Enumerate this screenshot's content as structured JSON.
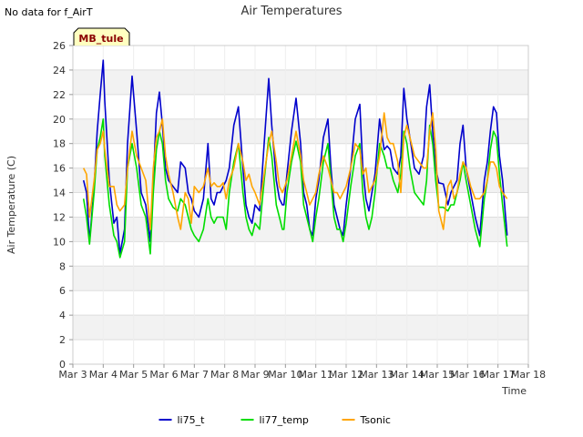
{
  "note": "No data for f_AirT",
  "station_tag": "MB_tule",
  "chart_data": {
    "type": "line",
    "title": "Air Temperatures",
    "xlabel": "Time",
    "ylabel": "Air Temperature (C)",
    "xlim": [
      0,
      15
    ],
    "ylim": [
      0,
      26
    ],
    "x_ticks": [
      0,
      1,
      2,
      3,
      4,
      5,
      6,
      7,
      8,
      9,
      10,
      11,
      12,
      13,
      14,
      15
    ],
    "x_tick_labels": [
      "Mar 3",
      "Mar 4",
      "Mar 5",
      "Mar 6",
      "Mar 7",
      "Mar 8",
      "Mar 9",
      "Mar 10",
      "Mar 11",
      "Mar 12",
      "Mar 13",
      "Mar 14",
      "Mar 15",
      "Mar 16",
      "Mar 17",
      "Mar 18"
    ],
    "y_ticks": [
      0,
      2,
      4,
      6,
      8,
      10,
      12,
      14,
      16,
      18,
      20,
      22,
      24,
      26
    ],
    "grid": true,
    "legend_position": "bottom-center",
    "series": [
      {
        "name": "li75_t",
        "color": "#0000cc",
        "x": [
          0.35,
          0.45,
          0.55,
          0.7,
          0.8,
          0.9,
          1.0,
          1.05,
          1.2,
          1.35,
          1.45,
          1.55,
          1.7,
          1.8,
          1.95,
          2.1,
          2.25,
          2.4,
          2.55,
          2.65,
          2.75,
          2.85,
          2.95,
          3.05,
          3.15,
          3.3,
          3.45,
          3.55,
          3.7,
          3.8,
          3.9,
          4.0,
          4.15,
          4.3,
          4.45,
          4.55,
          4.65,
          4.75,
          4.85,
          4.95,
          5.05,
          5.15,
          5.3,
          5.45,
          5.6,
          5.7,
          5.8,
          5.9,
          6.0,
          6.15,
          6.3,
          6.45,
          6.55,
          6.7,
          6.8,
          6.9,
          6.95,
          7.05,
          7.2,
          7.35,
          7.5,
          7.6,
          7.7,
          7.8,
          7.9,
          8.0,
          8.1,
          8.25,
          8.4,
          8.5,
          8.6,
          8.7,
          8.8,
          8.9,
          9.0,
          9.15,
          9.3,
          9.45,
          9.55,
          9.65,
          9.75,
          9.85,
          9.95,
          10.1,
          10.25,
          10.35,
          10.45,
          10.55,
          10.7,
          10.8,
          10.9,
          11.0,
          11.1,
          11.25,
          11.4,
          11.55,
          11.65,
          11.75,
          11.85,
          11.95,
          12.05,
          12.2,
          12.35,
          12.45,
          12.55,
          12.65,
          12.75,
          12.85,
          12.95,
          13.1,
          13.25,
          13.4,
          13.55,
          13.65,
          13.75,
          13.85,
          13.95,
          14.05,
          14.15,
          14.3
        ],
        "values": [
          15.0,
          14.0,
          10.0,
          14.5,
          19.0,
          22.0,
          24.8,
          21.5,
          15.0,
          11.5,
          12.0,
          9.0,
          11.0,
          18.0,
          23.5,
          19.0,
          14.0,
          13.0,
          10.0,
          15.0,
          20.5,
          22.2,
          19.5,
          16.0,
          15.0,
          14.5,
          14.0,
          16.5,
          16.0,
          14.0,
          13.5,
          12.5,
          12.0,
          13.5,
          18.0,
          13.5,
          13.0,
          14.0,
          14.0,
          14.5,
          15.0,
          16.0,
          19.5,
          21.0,
          16.0,
          13.0,
          12.0,
          11.5,
          13.0,
          12.5,
          18.0,
          23.3,
          19.5,
          15.0,
          13.5,
          13.0,
          13.0,
          15.5,
          19.0,
          21.7,
          18.0,
          14.0,
          13.0,
          11.0,
          10.5,
          13.5,
          15.0,
          18.5,
          20.0,
          16.0,
          13.0,
          12.0,
          11.0,
          10.5,
          13.0,
          16.0,
          20.0,
          21.2,
          16.0,
          13.5,
          12.5,
          14.0,
          15.5,
          20.0,
          17.5,
          17.8,
          17.5,
          16.0,
          15.5,
          17.0,
          22.5,
          20.0,
          18.5,
          16.0,
          15.5,
          17.0,
          21.0,
          22.8,
          19.0,
          16.0,
          14.8,
          14.7,
          13.0,
          14.0,
          14.5,
          15.0,
          18.0,
          19.5,
          16.0,
          14.0,
          12.0,
          10.5,
          15.0,
          16.5,
          19.0,
          21.0,
          20.5,
          17.0,
          15.0,
          10.5
        ]
      },
      {
        "name": "li77_temp",
        "color": "#00dd00",
        "x": [
          0.35,
          0.45,
          0.55,
          0.7,
          0.8,
          0.9,
          1.0,
          1.05,
          1.2,
          1.35,
          1.45,
          1.55,
          1.7,
          1.8,
          1.95,
          2.1,
          2.25,
          2.4,
          2.55,
          2.65,
          2.75,
          2.85,
          2.95,
          3.05,
          3.15,
          3.3,
          3.45,
          3.55,
          3.7,
          3.8,
          3.9,
          4.0,
          4.15,
          4.3,
          4.45,
          4.55,
          4.65,
          4.75,
          4.85,
          4.95,
          5.05,
          5.15,
          5.3,
          5.45,
          5.6,
          5.7,
          5.8,
          5.9,
          6.0,
          6.15,
          6.3,
          6.45,
          6.55,
          6.7,
          6.8,
          6.9,
          6.95,
          7.05,
          7.2,
          7.35,
          7.5,
          7.6,
          7.7,
          7.8,
          7.9,
          8.0,
          8.1,
          8.25,
          8.4,
          8.5,
          8.6,
          8.7,
          8.8,
          8.9,
          9.0,
          9.15,
          9.3,
          9.45,
          9.55,
          9.65,
          9.75,
          9.85,
          9.95,
          10.1,
          10.25,
          10.35,
          10.45,
          10.55,
          10.7,
          10.8,
          10.9,
          11.0,
          11.1,
          11.25,
          11.4,
          11.55,
          11.65,
          11.75,
          11.85,
          11.95,
          12.05,
          12.2,
          12.35,
          12.45,
          12.55,
          12.65,
          12.75,
          12.85,
          12.95,
          13.1,
          13.25,
          13.4,
          13.55,
          13.65,
          13.75,
          13.85,
          13.95,
          14.05,
          14.15,
          14.3
        ],
        "values": [
          13.5,
          12.0,
          9.8,
          14.0,
          17.5,
          18.5,
          20.0,
          17.0,
          13.0,
          10.5,
          10.0,
          8.7,
          10.0,
          16.0,
          18.0,
          16.0,
          13.0,
          12.0,
          9.0,
          14.0,
          17.5,
          19.0,
          18.0,
          15.0,
          13.5,
          12.8,
          12.5,
          13.5,
          13.0,
          12.0,
          11.0,
          10.5,
          10.0,
          11.0,
          13.5,
          12.0,
          11.5,
          12.0,
          12.0,
          12.0,
          11.0,
          14.0,
          16.5,
          18.0,
          14.0,
          12.0,
          11.0,
          10.5,
          11.5,
          11.0,
          15.0,
          18.5,
          17.0,
          13.0,
          12.0,
          11.0,
          11.0,
          14.0,
          16.5,
          18.2,
          16.5,
          13.0,
          12.0,
          11.0,
          10.0,
          12.0,
          13.5,
          16.5,
          18.0,
          15.0,
          12.0,
          11.0,
          11.0,
          10.0,
          11.5,
          14.5,
          17.0,
          18.0,
          14.0,
          12.0,
          11.0,
          12.0,
          14.0,
          18.0,
          17.0,
          16.0,
          16.0,
          15.0,
          14.0,
          15.5,
          19.0,
          18.0,
          16.0,
          14.0,
          13.5,
          13.0,
          15.0,
          19.5,
          18.0,
          15.0,
          12.8,
          12.8,
          12.5,
          13.0,
          13.0,
          14.0,
          15.0,
          16.5,
          15.0,
          13.0,
          11.0,
          9.6,
          13.5,
          15.0,
          17.5,
          19.0,
          18.5,
          15.5,
          13.0,
          9.6
        ]
      },
      {
        "name": "Tsonic",
        "color": "#ffa500",
        "x": [
          0.35,
          0.45,
          0.55,
          0.7,
          0.8,
          0.9,
          1.0,
          1.05,
          1.2,
          1.35,
          1.45,
          1.55,
          1.7,
          1.8,
          1.95,
          2.1,
          2.25,
          2.4,
          2.55,
          2.65,
          2.75,
          2.85,
          2.95,
          3.05,
          3.15,
          3.3,
          3.45,
          3.55,
          3.7,
          3.8,
          3.9,
          4.0,
          4.15,
          4.3,
          4.45,
          4.55,
          4.65,
          4.75,
          4.85,
          4.95,
          5.05,
          5.15,
          5.3,
          5.45,
          5.6,
          5.7,
          5.8,
          5.9,
          6.0,
          6.15,
          6.3,
          6.45,
          6.55,
          6.7,
          6.8,
          6.9,
          6.95,
          7.05,
          7.2,
          7.35,
          7.5,
          7.6,
          7.7,
          7.8,
          7.9,
          8.0,
          8.1,
          8.25,
          8.4,
          8.5,
          8.6,
          8.7,
          8.8,
          8.9,
          9.0,
          9.15,
          9.3,
          9.45,
          9.55,
          9.65,
          9.75,
          9.85,
          9.95,
          10.1,
          10.25,
          10.35,
          10.45,
          10.55,
          10.7,
          10.8,
          10.9,
          11.0,
          11.1,
          11.25,
          11.4,
          11.55,
          11.65,
          11.75,
          11.85,
          11.95,
          12.05,
          12.2,
          12.35,
          12.45,
          12.55,
          12.65,
          12.75,
          12.85,
          12.95,
          13.1,
          13.25,
          13.4,
          13.55,
          13.65,
          13.75,
          13.85,
          13.95,
          14.05,
          14.15,
          14.3
        ],
        "values": [
          16.0,
          15.5,
          12.0,
          15.0,
          17.5,
          18.0,
          19.0,
          17.5,
          14.5,
          14.5,
          13.0,
          12.5,
          13.0,
          16.0,
          19.0,
          17.0,
          16.0,
          15.0,
          11.0,
          16.0,
          18.5,
          19.0,
          20.0,
          17.0,
          15.5,
          14.0,
          12.0,
          11.0,
          14.0,
          13.5,
          11.5,
          14.5,
          14.0,
          14.5,
          16.0,
          14.5,
          14.8,
          14.5,
          14.5,
          14.8,
          13.5,
          15.0,
          16.0,
          18.0,
          16.5,
          15.0,
          15.5,
          14.5,
          14.0,
          13.0,
          15.5,
          18.0,
          19.0,
          16.5,
          14.5,
          14.0,
          14.3,
          15.0,
          17.0,
          19.0,
          17.0,
          15.0,
          14.0,
          13.0,
          13.5,
          14.0,
          15.5,
          17.0,
          16.0,
          15.0,
          14.0,
          14.0,
          13.5,
          14.0,
          14.5,
          16.0,
          18.0,
          17.5,
          15.5,
          16.0,
          14.0,
          14.5,
          15.0,
          17.0,
          20.5,
          18.5,
          18.0,
          18.0,
          16.5,
          14.0,
          18.5,
          19.5,
          18.5,
          17.0,
          16.5,
          16.0,
          16.0,
          19.0,
          20.5,
          17.5,
          12.5,
          11.0,
          14.5,
          15.0,
          13.5,
          14.0,
          15.5,
          16.5,
          16.0,
          14.5,
          13.5,
          13.5,
          14.0,
          15.0,
          16.5,
          16.5,
          16.0,
          14.5,
          14.0,
          13.5
        ]
      }
    ]
  }
}
